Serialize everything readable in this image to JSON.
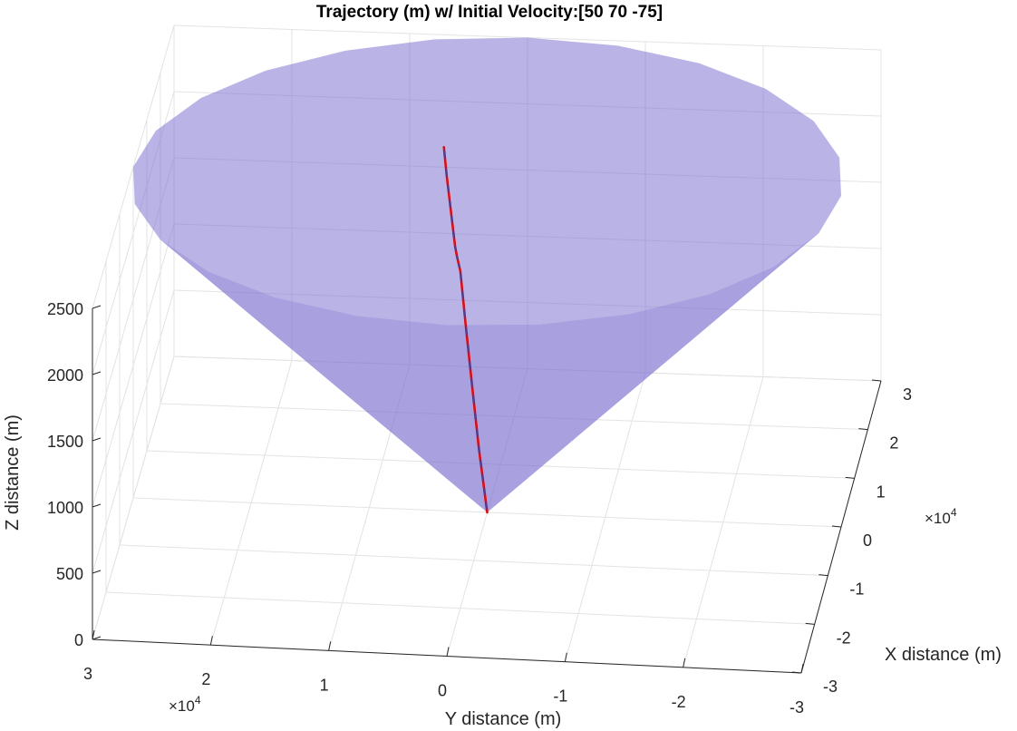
{
  "chart_data": {
    "type": "3d-surface-with-line",
    "title": "Trajectory (m) w/ Initial Velocity:[50  70 -75]",
    "xlabel": "X distance (m)",
    "ylabel": "Y distance (m)",
    "zlabel": "Z distance (m)",
    "x_ticks": [
      "-3",
      "-2",
      "-1",
      "0",
      "1",
      "2",
      "3"
    ],
    "y_ticks": [
      "3",
      "2",
      "1",
      "0",
      "-1",
      "-2",
      "-3"
    ],
    "z_ticks": [
      "0",
      "500",
      "1000",
      "1500",
      "2000",
      "2500"
    ],
    "x_exponent": "×10",
    "x_exponent_power": "4",
    "y_exponent": "×10",
    "y_exponent_power": "4",
    "xlim": [
      -30000,
      30000
    ],
    "ylim": [
      -30000,
      30000
    ],
    "zlim": [
      0,
      2500
    ],
    "grid": true,
    "cone": {
      "apex": [
        0,
        0,
        0
      ],
      "radius": 30000,
      "top_z": 2500,
      "color": "#7b6fd0"
    },
    "trajectory": {
      "color": "#e00000",
      "points_xyz": [
        [
          0,
          0,
          0
        ],
        [
          -800,
          600,
          500
        ],
        [
          -1500,
          1100,
          1000
        ],
        [
          -2100,
          1600,
          1500
        ],
        [
          -2400,
          2000,
          1900
        ],
        [
          -2200,
          2300,
          2000
        ],
        [
          -2800,
          2400,
          2100
        ],
        [
          -2000,
          3200,
          2600
        ],
        [
          -1500,
          3500,
          2800
        ]
      ]
    }
  }
}
